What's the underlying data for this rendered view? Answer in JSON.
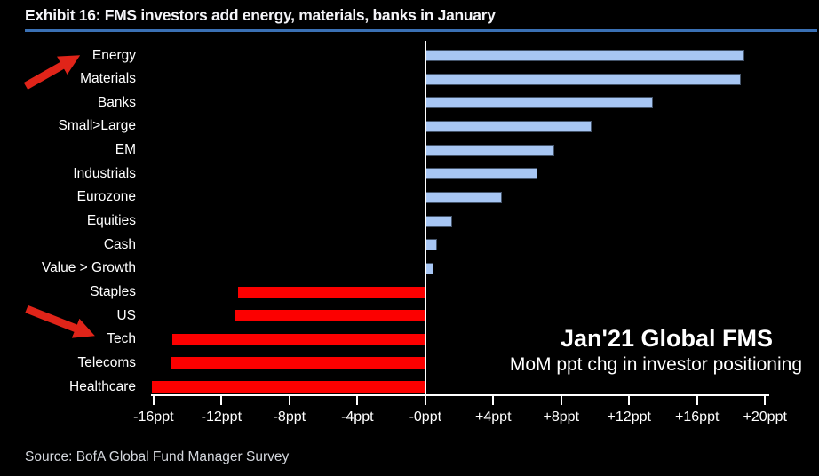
{
  "header": {
    "title": "Exhibit 16: FMS investors add energy, materials, banks in January"
  },
  "annotation": {
    "title": "Jan'21 Global FMS",
    "subtitle": "MoM ppt chg in investor positioning"
  },
  "source_line": "Source: BofA Global Fund Manager Survey",
  "colors": {
    "background": "#000000",
    "title_underline": "#3a70b4",
    "axis": "#ffffff",
    "positive_bar": "#a7c6f3",
    "positive_bar_border": "#44546a",
    "negative_bar": "#fc0000",
    "arrow": "#e02419",
    "text": "#ffffff"
  },
  "chart_data": {
    "type": "bar",
    "orientation": "horizontal",
    "title": "Exhibit 16: FMS investors add energy, materials, banks in January",
    "subtitle": "Jan'21 Global FMS — MoM ppt chg in investor positioning",
    "unit": "ppt",
    "categories": [
      "Energy",
      "Materials",
      "Banks",
      "Small>Large",
      "EM",
      "Industrials",
      "Eurozone",
      "Equities",
      "Cash",
      "Value > Growth",
      "Staples",
      "US",
      "Tech",
      "Telecoms",
      "Healthcare"
    ],
    "values": [
      18.8,
      18.6,
      13.4,
      9.8,
      7.6,
      6.6,
      4.5,
      1.6,
      0.7,
      0.5,
      -11.0,
      -11.2,
      -14.9,
      -15.0,
      -16.1
    ],
    "tick_values": [
      -16,
      -12,
      -8,
      -4,
      0,
      4,
      8,
      12,
      16,
      20
    ],
    "tick_labels": [
      "-16ppt",
      "-12ppt",
      "-8ppt",
      "-4ppt",
      "-0ppt",
      "+4ppt",
      "+8ppt",
      "+12ppt",
      "+16ppt",
      "+20ppt"
    ],
    "xlim": [
      -16.15,
      20.25
    ],
    "grid": false,
    "legend": false,
    "highlighted_categories": [
      "Energy",
      "Tech"
    ]
  }
}
